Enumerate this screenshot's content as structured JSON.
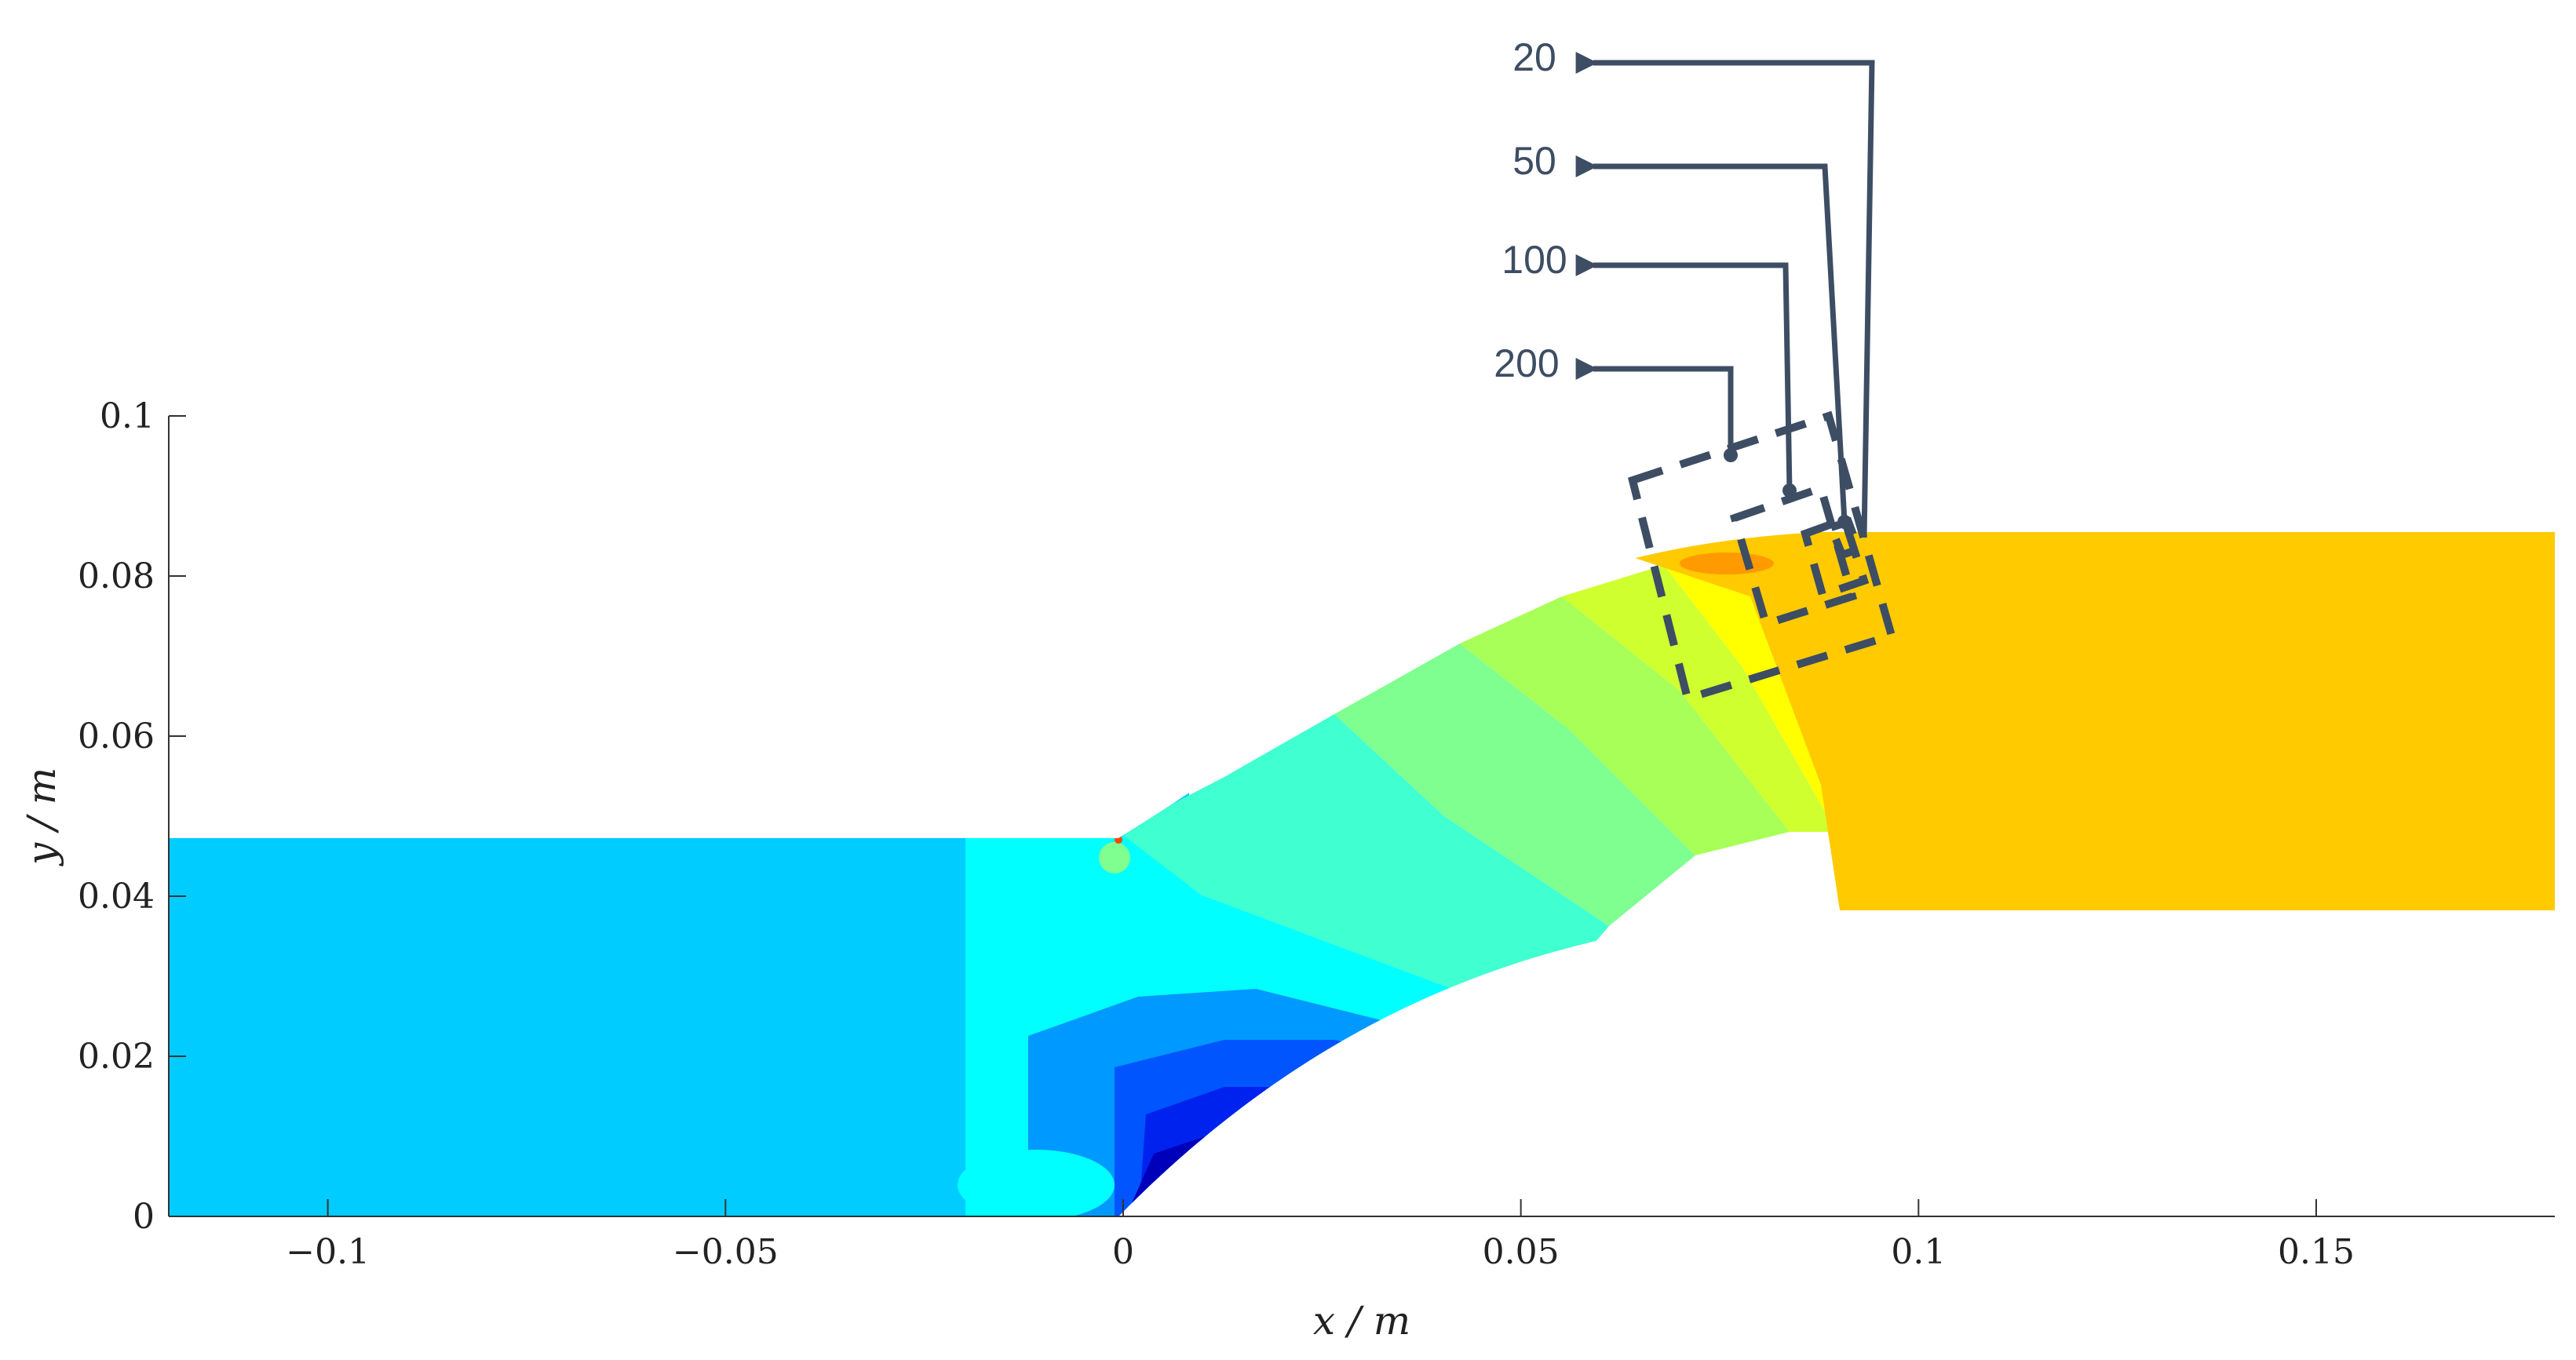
{
  "chart_data": {
    "type": "contour",
    "title": "",
    "xlabel": "x / m",
    "ylabel": "y / m",
    "xlim": [
      -0.12,
      0.18
    ],
    "ylim": [
      0,
      0.1
    ],
    "x_ticks": [
      -0.1,
      -0.05,
      0,
      0.05,
      0.1,
      0.15
    ],
    "x_tick_labels": [
      "−0.1",
      "−0.05",
      "0",
      "0.05",
      "0.1",
      "0.15"
    ],
    "y_ticks": [
      0,
      0.02,
      0.04,
      0.06,
      0.08,
      0.1
    ],
    "y_tick_labels": [
      "0",
      "0.02",
      "0.04",
      "0.06",
      "0.08",
      "0.1"
    ],
    "grid": false,
    "colors": {
      "inlet": "#00CCFF",
      "outlet": "#FFCA00",
      "axis": "#333333",
      "callout": "#3d4d63"
    },
    "callouts": [
      {
        "label": "20"
      },
      {
        "label": "50"
      },
      {
        "label": "100"
      },
      {
        "label": "200"
      }
    ]
  }
}
